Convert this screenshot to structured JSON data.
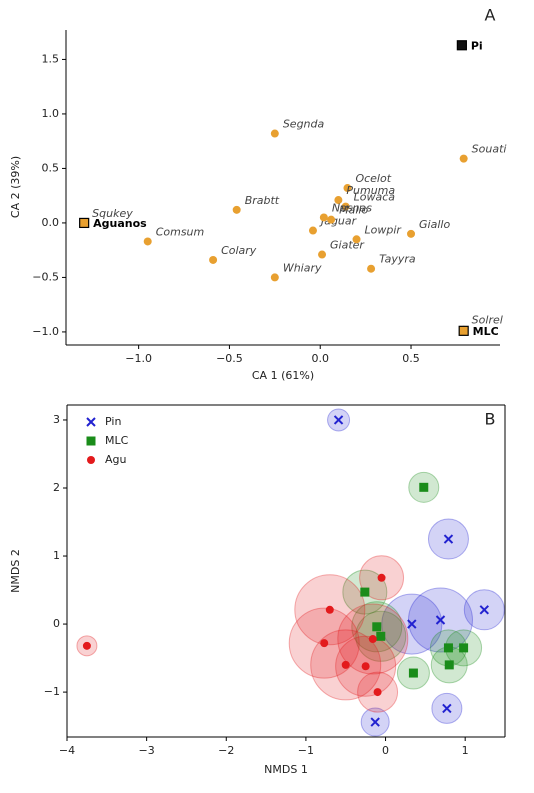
{
  "chart_data": [
    {
      "type": "scatter",
      "panel": "A",
      "xlabel": "CA 1 (61%)",
      "ylabel": "CA 2 (39%)",
      "xlim": [
        -1.4,
        0.99
      ],
      "ylim": [
        -1.12,
        1.77
      ],
      "xticks": [
        {
          "value": -1.0,
          "label": "−1.0"
        },
        {
          "value": -0.5,
          "label": "−0.5"
        },
        {
          "value": 0.0,
          "label": "0.0"
        },
        0.5
      ],
      "yticks": [
        {
          "value": -1.0,
          "label": "−1.0"
        },
        {
          "value": -0.5,
          "label": "−0.5"
        },
        {
          "value": 0.0,
          "label": "0.0"
        },
        0.5,
        {
          "value": 1.0,
          "label": "1.0"
        },
        1.5
      ],
      "series": [
        {
          "marker": "circle",
          "color": "#e8a030",
          "labels": [
            "Squkey",
            "Comsum",
            "Colary",
            "Brabtt",
            "Segnda",
            "Whiary",
            "Jaguar",
            "Giater",
            "Ocelot",
            "Pumuma",
            "Lowaca",
            "Nasnas",
            "Mallo",
            "Lowpir",
            "Tayyra",
            "Giallo",
            "Souati",
            "Solrel"
          ],
          "x": [
            -1.3,
            -0.95,
            -0.59,
            -0.46,
            -0.25,
            -0.25,
            -0.04,
            0.01,
            0.15,
            0.1,
            0.14,
            0.02,
            0.06,
            0.2,
            0.28,
            0.5,
            0.79,
            0.79
          ],
          "values": [
            0.0,
            -0.17,
            -0.34,
            0.12,
            0.82,
            -0.5,
            -0.07,
            -0.29,
            0.32,
            0.21,
            0.15,
            0.05,
            0.03,
            -0.15,
            -0.42,
            -0.1,
            0.59,
            -0.98
          ]
        },
        {
          "marker": "square",
          "colors": [
            "#111111",
            "#e8a030",
            "#e8a030"
          ],
          "labels": [
            "Pi",
            "MLC",
            "Aguanos"
          ],
          "x": [
            0.78,
            0.79,
            -1.3
          ],
          "values": [
            1.63,
            -0.99,
            0.0
          ]
        }
      ]
    },
    {
      "type": "bubble",
      "panel": "B",
      "xlabel": "NMDS 1",
      "ylabel": "NMDS 2",
      "xlim": [
        -4.0,
        1.5
      ],
      "ylim": [
        -1.66,
        3.22
      ],
      "xticks": [
        {
          "value": -4,
          "label": "−4"
        },
        {
          "value": -3,
          "label": "−3"
        },
        {
          "value": -2,
          "label": "−2"
        },
        {
          "value": -1,
          "label": "−1"
        },
        0,
        1
      ],
      "yticks": [
        {
          "value": -1,
          "label": "−1"
        },
        0,
        1,
        2,
        3
      ],
      "legend": "upper left",
      "series": [
        {
          "name": "Pin",
          "color": "#2222d0",
          "marker": "x",
          "x": [
            -0.59,
            0.79,
            1.24,
            0.33,
            0.69,
            0.77,
            -0.13
          ],
          "values": [
            3.0,
            1.25,
            0.21,
            0.0,
            0.06,
            -1.24,
            -1.44
          ],
          "sizes": [
            11,
            20,
            20,
            30,
            32,
            15,
            14
          ]
        },
        {
          "name": "MLC",
          "color": "#1a8c1a",
          "marker": "square",
          "x": [
            0.48,
            -0.26,
            -0.11,
            -0.06,
            0.35,
            0.79,
            0.98,
            0.8
          ],
          "values": [
            2.01,
            0.47,
            -0.04,
            -0.18,
            -0.72,
            -0.35,
            -0.35,
            -0.6
          ],
          "sizes": [
            15,
            22,
            25,
            25,
            16,
            18,
            18,
            18
          ]
        },
        {
          "name": "Agu",
          "color": "#e31a1c",
          "marker": "circle",
          "x": [
            -3.75,
            -0.7,
            -0.77,
            -0.05,
            -0.16,
            -0.5,
            -0.25,
            -0.1
          ],
          "values": [
            -0.32,
            0.21,
            -0.28,
            0.68,
            -0.22,
            -0.6,
            -0.62,
            -1.0
          ],
          "sizes": [
            10,
            35,
            35,
            22,
            35,
            35,
            30,
            20
          ]
        }
      ]
    }
  ]
}
